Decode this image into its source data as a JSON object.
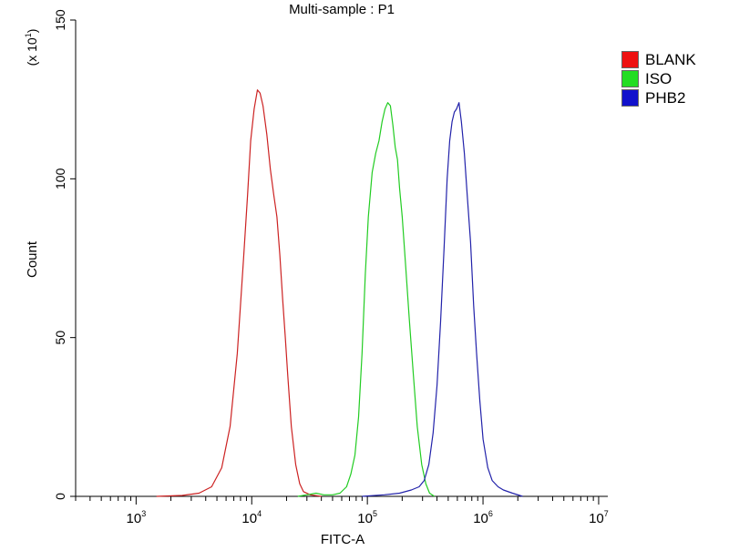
{
  "chart_data": {
    "type": "line",
    "title": "Multi-sample : P1",
    "xlabel": "FITC-A",
    "ylabel": "Count",
    "y_multiplier_prefix": "(x 10",
    "y_multiplier_exp": "1",
    "y_multiplier_suffix": ")",
    "x_scale": "log",
    "xlim": [
      300,
      12000000
    ],
    "ylim": [
      0,
      150
    ],
    "x_ticks": [
      {
        "value": 1000,
        "base": "10",
        "exp": "3"
      },
      {
        "value": 10000,
        "base": "10",
        "exp": "4"
      },
      {
        "value": 100000,
        "base": "10",
        "exp": "5"
      },
      {
        "value": 1000000,
        "base": "10",
        "exp": "6"
      },
      {
        "value": 10000000,
        "base": "10",
        "exp": "7"
      }
    ],
    "y_ticks": [
      {
        "value": 0,
        "label": "0"
      },
      {
        "value": 50,
        "label": "50"
      },
      {
        "value": 100,
        "label": "100"
      },
      {
        "value": 150,
        "label": "150"
      }
    ],
    "grid": false,
    "legend_position": "right",
    "series": [
      {
        "name": "BLANK",
        "color": "#cc2222",
        "legend_color": "#ee1111",
        "points": [
          [
            1500,
            0
          ],
          [
            2500,
            0.3
          ],
          [
            3500,
            1
          ],
          [
            4500,
            3
          ],
          [
            5500,
            9
          ],
          [
            6500,
            22
          ],
          [
            7500,
            45
          ],
          [
            8500,
            75
          ],
          [
            9200,
            95
          ],
          [
            9800,
            112
          ],
          [
            10500,
            122
          ],
          [
            11200,
            128
          ],
          [
            11800,
            127
          ],
          [
            12500,
            123
          ],
          [
            13500,
            114
          ],
          [
            14500,
            103
          ],
          [
            15500,
            95
          ],
          [
            16500,
            88
          ],
          [
            17500,
            76
          ],
          [
            18500,
            62
          ],
          [
            19500,
            50
          ],
          [
            20500,
            38
          ],
          [
            22000,
            22
          ],
          [
            24000,
            10
          ],
          [
            26000,
            4
          ],
          [
            28000,
            1.5
          ],
          [
            32000,
            0.5
          ],
          [
            40000,
            0
          ]
        ]
      },
      {
        "name": "ISO",
        "color": "#22cc22",
        "legend_color": "#22dd22",
        "points": [
          [
            25000,
            0
          ],
          [
            30000,
            0.5
          ],
          [
            36000,
            1
          ],
          [
            42000,
            0.5
          ],
          [
            50000,
            0.5
          ],
          [
            58000,
            1
          ],
          [
            66000,
            3
          ],
          [
            72000,
            7
          ],
          [
            78000,
            13
          ],
          [
            84000,
            25
          ],
          [
            90000,
            45
          ],
          [
            96000,
            70
          ],
          [
            102000,
            88
          ],
          [
            110000,
            102
          ],
          [
            118000,
            108
          ],
          [
            126000,
            112
          ],
          [
            134000,
            118
          ],
          [
            142000,
            122
          ],
          [
            150000,
            124
          ],
          [
            158000,
            123
          ],
          [
            166000,
            117
          ],
          [
            174000,
            110
          ],
          [
            182000,
            106
          ],
          [
            190000,
            97
          ],
          [
            200000,
            88
          ],
          [
            215000,
            72
          ],
          [
            230000,
            56
          ],
          [
            250000,
            38
          ],
          [
            270000,
            22
          ],
          [
            295000,
            10
          ],
          [
            320000,
            4
          ],
          [
            345000,
            1
          ],
          [
            380000,
            0
          ]
        ]
      },
      {
        "name": "PHB2",
        "color": "#2222aa",
        "legend_color": "#1111cc",
        "points": [
          [
            90000,
            0
          ],
          [
            140000,
            0.5
          ],
          [
            190000,
            1
          ],
          [
            240000,
            2
          ],
          [
            280000,
            3
          ],
          [
            310000,
            5
          ],
          [
            340000,
            10
          ],
          [
            370000,
            20
          ],
          [
            400000,
            35
          ],
          [
            430000,
            55
          ],
          [
            460000,
            78
          ],
          [
            490000,
            100
          ],
          [
            515000,
            112
          ],
          [
            540000,
            118
          ],
          [
            565000,
            121
          ],
          [
            590000,
            122
          ],
          [
            620000,
            124
          ],
          [
            650000,
            118
          ],
          [
            690000,
            108
          ],
          [
            730000,
            95
          ],
          [
            780000,
            80
          ],
          [
            830000,
            60
          ],
          [
            880000,
            45
          ],
          [
            940000,
            30
          ],
          [
            1000000,
            18
          ],
          [
            1100000,
            9
          ],
          [
            1200000,
            5
          ],
          [
            1350000,
            3
          ],
          [
            1500000,
            2
          ],
          [
            1800000,
            1
          ],
          [
            2200000,
            0
          ]
        ]
      }
    ]
  }
}
